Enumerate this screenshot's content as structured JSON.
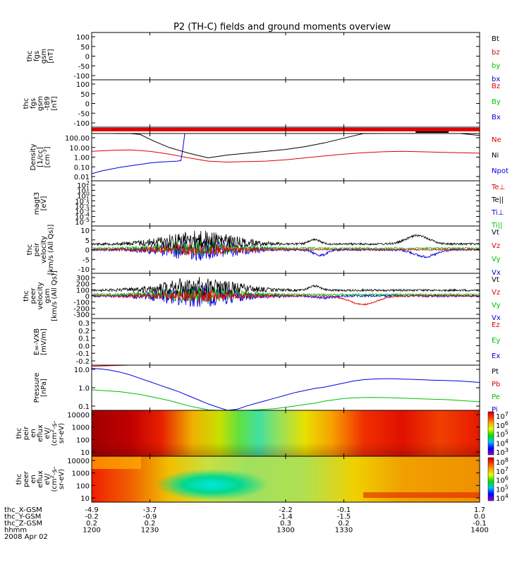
{
  "title": "P2 (TH-C) fields and ground moments overview",
  "colors": {
    "black": "#000000",
    "red": "#e00000",
    "green": "#00c000",
    "blue": "#0000e0"
  },
  "chart_data": {
    "type": "line",
    "time": {
      "ticks": [
        "1200",
        "1230",
        "1300",
        "1330",
        "1400"
      ],
      "range": [
        1200,
        1400
      ]
    },
    "footer": {
      "rows": [
        {
          "label": "thc_X-GSM",
          "values": [
            "-4.9",
            "-3.7",
            "-2.2",
            "-0.1",
            "1.7"
          ]
        },
        {
          "label": "thc_Y-GSM",
          "values": [
            "-0.2",
            "-0.9",
            "-1.4",
            "-1.5",
            "0.0"
          ]
        },
        {
          "label": "thc_Z-GSM",
          "values": [
            "0.2",
            "0.2",
            "0.3",
            "0.2",
            "-0.1"
          ]
        },
        {
          "label": "hhmm",
          "values": [
            "1200",
            "1230",
            "1300",
            "1330",
            "1400"
          ]
        }
      ],
      "date": "2008 Apr 02"
    },
    "panels": [
      {
        "ylabel": [
          "thc",
          "fgs",
          "gsm",
          "[nT]"
        ],
        "ticks": [
          "100",
          "50",
          "0",
          "-50",
          "-100"
        ],
        "legend": [
          {
            "text": "Bt",
            "color": "#000000"
          },
          {
            "text": "bz",
            "color": "#e00000"
          },
          {
            "text": "by",
            "color": "#00c000"
          },
          {
            "text": "bx",
            "color": "#0000e0"
          }
        ]
      },
      {
        "ylabel": [
          "thc",
          "fgs",
          "gsm",
          "-t89",
          "[nT]"
        ],
        "ticks": [
          "100",
          "50",
          "0",
          "-50",
          "-100"
        ],
        "legend": [
          {
            "text": "Bz",
            "color": "#e00000"
          },
          {
            "text": "By",
            "color": "#00c000"
          },
          {
            "text": "Bx",
            "color": "#0000e0"
          }
        ]
      },
      {
        "ylabel": [],
        "ticks": [],
        "legend": []
      },
      {
        "ylabel": [
          "Density",
          "[1/cc]",
          "[cm^-3]"
        ],
        "ticks": [
          "100.00",
          "10.00",
          "1.00",
          "0.10",
          "0.01"
        ],
        "legend": [
          {
            "text": "Ne",
            "color": "#e00000"
          },
          {
            "text": "Ni",
            "color": "#000000"
          },
          {
            "text": "Npot",
            "color": "#0000e0"
          }
        ],
        "series": [
          {
            "color": "#000000",
            "t": [
              1200,
              1205,
              1210,
              1215,
              1220,
              1225,
              1232,
              1240,
              1250,
              1260,
              1270,
              1280,
              1290,
              1300,
              1310,
              1320,
              1330,
              1340,
              1350,
              1360,
              1370,
              1380,
              1390,
              1400
            ],
            "y": [
              2.9,
              2.8,
              2.7,
              2.6,
              2.6,
              2.5,
              1.8,
              1.1,
              0.5,
              0.0,
              0.3,
              0.5,
              0.7,
              0.9,
              1.2,
              1.6,
              2.1,
              2.6,
              2.9,
              3.0,
              3.0,
              2.9,
              2.7,
              2.4
            ]
          },
          {
            "color": "#e00000",
            "t": [
              1200,
              1210,
              1220,
              1230,
              1240,
              1250,
              1260,
              1270,
              1280,
              1290,
              1300,
              1310,
              1320,
              1330,
              1340,
              1350,
              1360,
              1370,
              1380,
              1390,
              1400
            ],
            "y": [
              0.7,
              0.8,
              0.85,
              0.7,
              0.4,
              0.0,
              -0.35,
              -0.45,
              -0.4,
              -0.35,
              -0.2,
              0.0,
              0.2,
              0.4,
              0.55,
              0.65,
              0.7,
              0.65,
              0.6,
              0.55,
              0.5
            ]
          },
          {
            "color": "#0000e0",
            "t": [
              1200,
              1205,
              1210,
              1215,
              1220,
              1225,
              1230,
              1235,
              1240,
              1244,
              1246,
              1247,
              1248
            ],
            "y": [
              -1.7,
              -1.4,
              -1.2,
              -1.0,
              -0.85,
              -0.7,
              -0.55,
              -0.45,
              -0.4,
              -0.35,
              -0.3,
              1.0,
              3.0
            ]
          }
        ]
      },
      {
        "ylabel": [
          "magt3",
          "[eV]"
        ],
        "ticks": [
          "10^2",
          "10^1",
          "10^0",
          "10^-1",
          "10^-2",
          "10^-3",
          "10^-4",
          "10^-5"
        ],
        "legend": [
          {
            "text": "Te⊥",
            "color": "#e00000"
          },
          {
            "text": "Te||",
            "color": "#000000"
          },
          {
            "text": "Ti⊥",
            "color": "#0000e0"
          },
          {
            "text": "Ti||",
            "color": "#00c000"
          }
        ]
      },
      {
        "ylabel": [
          "thc",
          "peir",
          "velocity",
          "[km/s (All Qs)]"
        ],
        "ticks": [
          "10",
          "5",
          "0",
          "-5",
          "-10"
        ],
        "legend": [
          {
            "text": "Vt",
            "color": "#000000"
          },
          {
            "text": "Vz",
            "color": "#e00000"
          },
          {
            "text": "Vy",
            "color": "#00c000"
          },
          {
            "text": "Vx",
            "color": "#0000e0"
          }
        ]
      },
      {
        "ylabel": [
          "thc",
          "peer",
          "velocity",
          "gsm",
          "[km/s (All Qs)]"
        ],
        "ticks": [
          "300",
          "200",
          "100",
          "0",
          "-100",
          "-200",
          "-300"
        ],
        "legend": [
          {
            "text": "Vt",
            "color": "#000000"
          },
          {
            "text": "Vz",
            "color": "#e00000"
          },
          {
            "text": "Vy",
            "color": "#00c000"
          },
          {
            "text": "Vx",
            "color": "#0000e0"
          }
        ]
      },
      {
        "ylabel": [
          "E=-VXB",
          "[mV/m]"
        ],
        "ticks": [
          "0.3",
          "0.2",
          "0.1",
          "0.0",
          "-0.1",
          "-0.2"
        ],
        "legend": [
          {
            "text": "Ez",
            "color": "#e00000"
          },
          {
            "text": "Ey",
            "color": "#00c000"
          },
          {
            "text": "Ex",
            "color": "#0000e0"
          }
        ]
      },
      {
        "ylabel": [
          "Pressure",
          "[nPa]"
        ],
        "ticks": [
          "10.0",
          "1.0",
          "0.1"
        ],
        "legend": [
          {
            "text": "Pt",
            "color": "#000000"
          },
          {
            "text": "Pb",
            "color": "#e00000"
          },
          {
            "text": "Pe",
            "color": "#00c000"
          },
          {
            "text": "Pi",
            "color": "#0000e0"
          }
        ],
        "series": [
          {
            "color": "#0000e0",
            "t": [
              1200,
              1205,
              1210,
              1215,
              1220,
              1225,
              1230,
              1235,
              1240,
              1245,
              1250,
              1255,
              1260,
              1265,
              1270,
              1275,
              1280,
              1285,
              1290,
              1295,
              1300,
              1305,
              1310,
              1315,
              1320,
              1325,
              1330,
              1335,
              1340,
              1345,
              1350,
              1355,
              1360,
              1365,
              1370,
              1375,
              1380,
              1385,
              1390,
              1395,
              1400
            ],
            "y": [
              1.5,
              1.45,
              1.35,
              1.2,
              1.0,
              0.75,
              0.5,
              0.25,
              0.0,
              -0.25,
              -0.55,
              -0.85,
              -1.15,
              -1.4,
              -1.65,
              -1.55,
              -1.3,
              -1.1,
              -0.9,
              -0.7,
              -0.5,
              -0.3,
              -0.15,
              0.0,
              0.1,
              0.25,
              0.4,
              0.55,
              0.65,
              0.7,
              0.72,
              0.72,
              0.7,
              0.68,
              0.65,
              0.62,
              0.6,
              0.58,
              0.55,
              0.5,
              0.45
            ]
          },
          {
            "color": "#00c000",
            "t": [
              1200,
              1205,
              1210,
              1215,
              1220,
              1225,
              1230,
              1235,
              1240,
              1245,
              1250,
              1255,
              1260,
              1265,
              1270,
              1275,
              1280,
              1285,
              1290,
              1295,
              1300,
              1305,
              1310,
              1315,
              1320,
              1325,
              1330,
              1335,
              1340,
              1345,
              1350,
              1355,
              1360,
              1365,
              1370,
              1375,
              1380,
              1385,
              1390,
              1395,
              1400
            ],
            "y": [
              -0.1,
              -0.15,
              -0.2,
              -0.25,
              -0.35,
              -0.45,
              -0.6,
              -0.75,
              -0.9,
              -1.1,
              -1.3,
              -1.45,
              -1.6,
              -1.7,
              -1.72,
              -1.7,
              -1.65,
              -1.6,
              -1.55,
              -1.5,
              -1.4,
              -1.3,
              -1.2,
              -1.1,
              -0.95,
              -0.85,
              -0.75,
              -0.7,
              -0.68,
              -0.67,
              -0.68,
              -0.7,
              -0.72,
              -0.75,
              -0.78,
              -0.8,
              -0.82,
              -0.85,
              -0.9,
              -0.95,
              -1.0
            ]
          },
          {
            "color": "#e00000",
            "t": [
              1200,
              1210,
              1220,
              1230,
              1240
            ],
            "y": [
              1.65,
              1.7,
              1.75,
              1.8,
              1.85
            ]
          }
        ]
      },
      {
        "ylabel": [
          "thc",
          "peir",
          "en",
          "eflux",
          "eV/",
          "(cm^2-s-",
          "sr-eV)"
        ],
        "ticks": [
          "10000",
          "1000",
          "100",
          "10"
        ],
        "colorbar": [
          "10^7",
          "10^6",
          "10^5",
          "10^4",
          "10^3"
        ]
      },
      {
        "ylabel": [
          "thc",
          "peer",
          "en",
          "eflux",
          "eV/",
          "(cm^2-s-",
          "sr-eV)"
        ],
        "ticks": [
          "10000",
          "1000",
          "100",
          "10"
        ],
        "colorbar": [
          "10^8",
          "10^7",
          "10^6",
          "10^5",
          "10^4"
        ]
      }
    ]
  }
}
